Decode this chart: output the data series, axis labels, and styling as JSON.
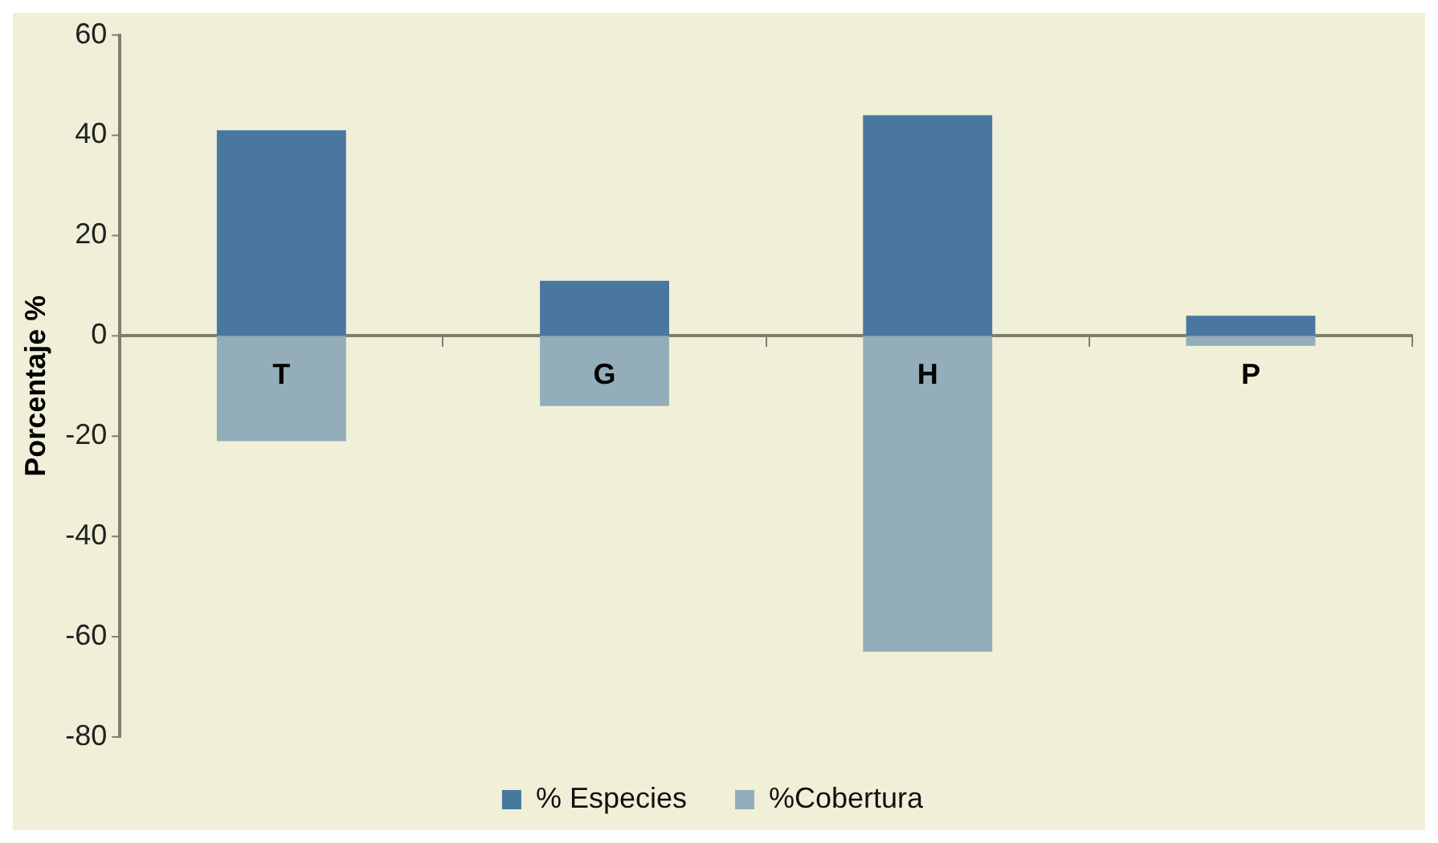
{
  "chart_data": {
    "type": "bar",
    "ylabel": "Porcentaje %",
    "categories": [
      "T",
      "G",
      "H",
      "P"
    ],
    "stacked": true,
    "series": [
      {
        "name": "% Especies",
        "color": "#4a77a0",
        "values": [
          41,
          11,
          44,
          4
        ]
      },
      {
        "name": "%Cobertura",
        "color": "#94adbb",
        "values": [
          -21,
          -14,
          -63,
          -2
        ]
      }
    ],
    "ylim": [
      -80,
      60
    ],
    "yticks": [
      -80,
      -60,
      -40,
      -20,
      0,
      20,
      40,
      60
    ],
    "grid": false,
    "legend": "bottom"
  }
}
